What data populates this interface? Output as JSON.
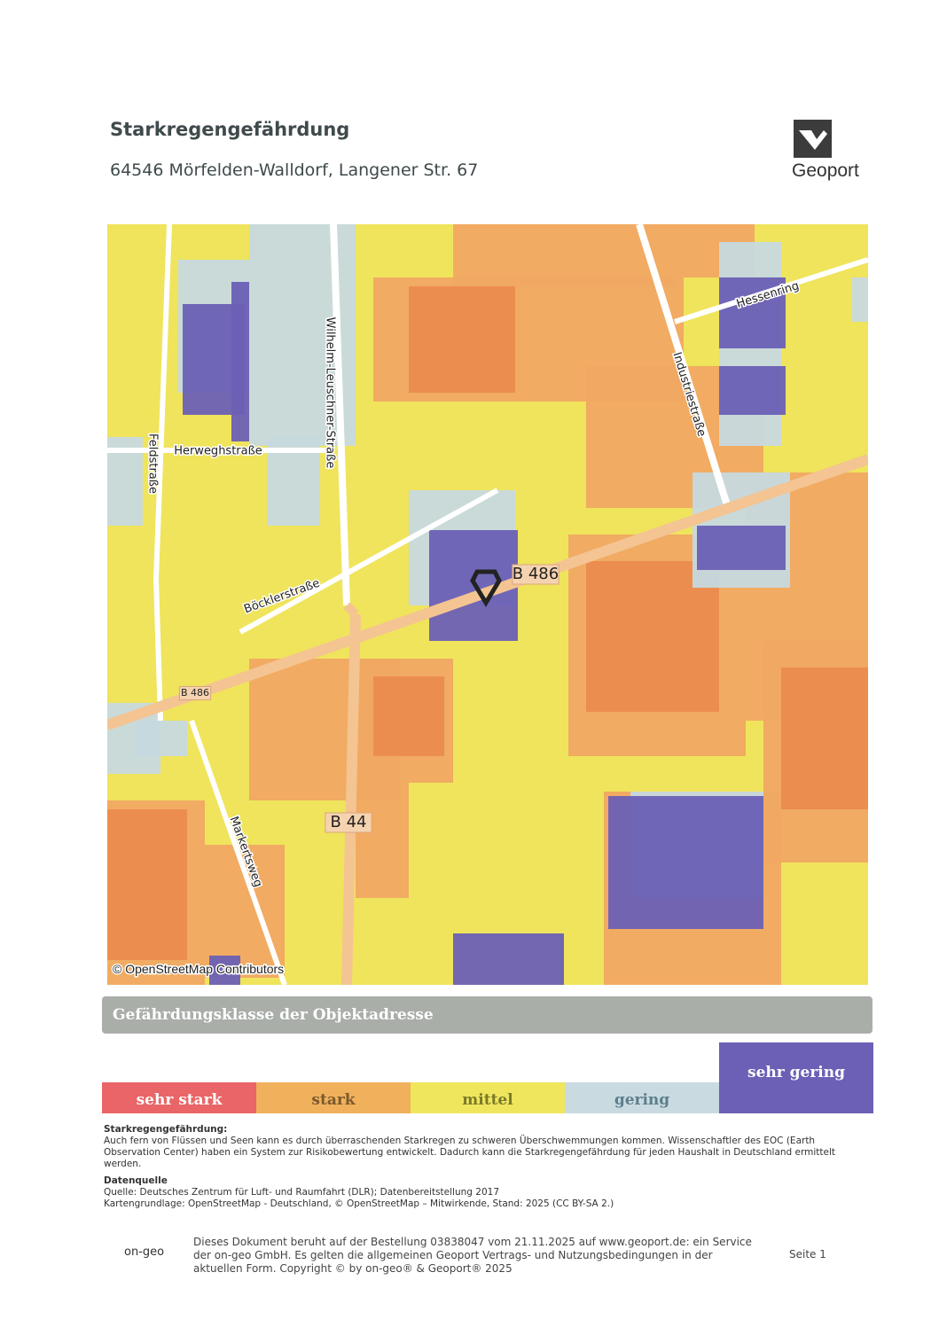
{
  "header": {
    "title": "Starkregengefährdung",
    "address": "64546 Mörfelden-Walldorf, Langener Str. 67",
    "logo": "Geoport"
  },
  "map": {
    "labels": [
      "Wilhelm-Leuschner-Straße",
      "Hessenring",
      "Industriestraße",
      "Herweghstraße",
      "Feldstraße",
      "Böcklerstraße",
      "B 486",
      "B 486",
      "B 44",
      "Markertsweg"
    ],
    "attribution": "© OpenStreetMap Contributors"
  },
  "classification": {
    "title": "Gefährdungsklasse der Objektadresse",
    "classes": [
      "sehr stark",
      "stark",
      "mittel",
      "gering",
      "sehr gering"
    ]
  },
  "description": {
    "heading": "Starkregengefährdung:",
    "text": "Auch fern von Flüssen und Seen kann es durch überraschenden Starkregen zu schweren Überschwemmungen kommen. Wissenschaftler des EOC (Earth Observation Center) haben ein System zur Risikobewertung entwickelt. Dadurch kann die Starkregengefährdung für jeden Haushalt in Deutschland ermittelt werden."
  },
  "source": {
    "heading": "Datenquelle",
    "lines": [
      "Quelle: Deutsches Zentrum für Luft- und Raumfahrt (DLR); Datenbereitstellung 2017",
      "Kartengrundlage: OpenStreetMap - Deutschland, © OpenStreetMap – Mitwirkende, Stand: 2025 (CC BY-SA 2.)"
    ]
  },
  "footer": {
    "brand": "on-geo",
    "lines": [
      "Dieses Dokument beruht auf der Bestellung 03838047 vom 21.11.2025 auf www.geoport.de: ein Service",
      "der on-geo GmbH. Es gelten die allgemeinen Geoport Vertrags- und Nutzungsbedingungen in der",
      "aktuellen Form. Copyright © by on-geo® & Geoport® 2025"
    ],
    "page": "Seite 1"
  }
}
